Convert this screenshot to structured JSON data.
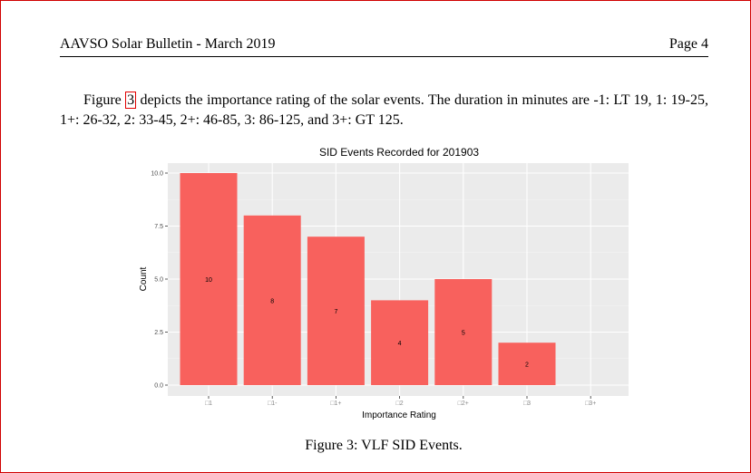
{
  "header": {
    "title": "AAVSO Solar Bulletin - March 2019",
    "page": "Page 4"
  },
  "paragraph": {
    "before": "Figure ",
    "ref": "3",
    "after": " depicts the importance rating of the solar events. The duration in minutes are -1: LT 19, 1: 19-25, 1+: 26-32, 2: 33-45, 2+: 46-85, 3: 86-125, and 3+: GT 125."
  },
  "caption": "Figure 3: VLF SID Events.",
  "colors": {
    "bar": "#f8615d",
    "panel": "#ebebeb",
    "grid": "#ffffff",
    "border": "#d00000"
  },
  "chart_data": {
    "type": "bar",
    "title": "SID Events Recorded for 201903",
    "xlabel": "Importance Rating",
    "ylabel": "Count",
    "categories": [
      "□1",
      "□1-",
      "□1+",
      "□2",
      "□2+",
      "□3",
      "□3+"
    ],
    "values": [
      10,
      8,
      7,
      4,
      5,
      2,
      0
    ],
    "data_labels": [
      "10",
      "8",
      "7",
      "4",
      "5",
      "2",
      ""
    ],
    "yticks": [
      "0.0",
      "2.5",
      "5.0",
      "7.5",
      "10.0"
    ],
    "ytick_values": [
      0,
      2.5,
      5,
      7.5,
      10
    ],
    "ylim": [
      -0.45,
      10.5
    ],
    "grid": true,
    "legend": "none"
  }
}
